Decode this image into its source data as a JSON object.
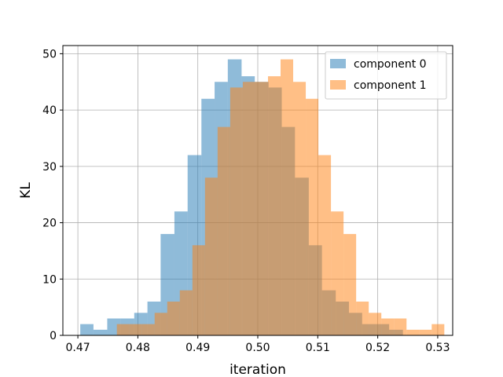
{
  "chart_data": {
    "type": "histogram",
    "title": "",
    "xlabel": "iteration",
    "ylabel": "KL",
    "xlim": [
      0.4675,
      0.5325
    ],
    "ylim": [
      0,
      51.45
    ],
    "xticks": [
      "0.47",
      "0.48",
      "0.49",
      "0.50",
      "0.51",
      "0.52",
      "0.53"
    ],
    "xtick_values": [
      0.47,
      0.48,
      0.49,
      0.5,
      0.51,
      0.52,
      0.53
    ],
    "yticks": [
      "0",
      "10",
      "20",
      "30",
      "40",
      "50"
    ],
    "ytick_values": [
      0,
      10,
      20,
      30,
      40,
      50
    ],
    "grid": true,
    "legend_position": "top-right",
    "series": [
      {
        "name": "component 0",
        "color": "#1f77b4",
        "alpha": 0.5,
        "bins": [
          {
            "x0": 0.4704,
            "x1": 0.4726,
            "count": 2
          },
          {
            "x0": 0.4726,
            "x1": 0.4749,
            "count": 1
          },
          {
            "x0": 0.4749,
            "x1": 0.4771,
            "count": 3
          },
          {
            "x0": 0.4771,
            "x1": 0.4794,
            "count": 3
          },
          {
            "x0": 0.4794,
            "x1": 0.4816,
            "count": 4
          },
          {
            "x0": 0.4816,
            "x1": 0.4838,
            "count": 6
          },
          {
            "x0": 0.4838,
            "x1": 0.4861,
            "count": 18
          },
          {
            "x0": 0.4861,
            "x1": 0.4883,
            "count": 22
          },
          {
            "x0": 0.4883,
            "x1": 0.4906,
            "count": 32
          },
          {
            "x0": 0.4906,
            "x1": 0.4928,
            "count": 42
          },
          {
            "x0": 0.4928,
            "x1": 0.495,
            "count": 45
          },
          {
            "x0": 0.495,
            "x1": 0.4973,
            "count": 49
          },
          {
            "x0": 0.4973,
            "x1": 0.4995,
            "count": 46
          },
          {
            "x0": 0.4995,
            "x1": 0.5018,
            "count": 45
          },
          {
            "x0": 0.5018,
            "x1": 0.504,
            "count": 44
          },
          {
            "x0": 0.504,
            "x1": 0.5062,
            "count": 37
          },
          {
            "x0": 0.5062,
            "x1": 0.5085,
            "count": 28
          },
          {
            "x0": 0.5085,
            "x1": 0.5107,
            "count": 16
          },
          {
            "x0": 0.5107,
            "x1": 0.513,
            "count": 8
          },
          {
            "x0": 0.513,
            "x1": 0.5152,
            "count": 6
          },
          {
            "x0": 0.5152,
            "x1": 0.5174,
            "count": 4
          },
          {
            "x0": 0.5174,
            "x1": 0.5197,
            "count": 2
          },
          {
            "x0": 0.5197,
            "x1": 0.5219,
            "count": 2
          },
          {
            "x0": 0.5219,
            "x1": 0.5242,
            "count": 1
          }
        ]
      },
      {
        "name": "component 1",
        "color": "#ff7f0e",
        "alpha": 0.5,
        "bins": [
          {
            "x0": 0.4765,
            "x1": 0.4786,
            "count": 2
          },
          {
            "x0": 0.4786,
            "x1": 0.4807,
            "count": 2
          },
          {
            "x0": 0.4807,
            "x1": 0.4828,
            "count": 2
          },
          {
            "x0": 0.4828,
            "x1": 0.4849,
            "count": 4
          },
          {
            "x0": 0.4849,
            "x1": 0.487,
            "count": 6
          },
          {
            "x0": 0.487,
            "x1": 0.4891,
            "count": 8
          },
          {
            "x0": 0.4891,
            "x1": 0.4912,
            "count": 16
          },
          {
            "x0": 0.4912,
            "x1": 0.4933,
            "count": 28
          },
          {
            "x0": 0.4933,
            "x1": 0.4954,
            "count": 37
          },
          {
            "x0": 0.4954,
            "x1": 0.4975,
            "count": 44
          },
          {
            "x0": 0.4975,
            "x1": 0.4996,
            "count": 45
          },
          {
            "x0": 0.4996,
            "x1": 0.5017,
            "count": 45
          },
          {
            "x0": 0.5017,
            "x1": 0.5038,
            "count": 46
          },
          {
            "x0": 0.5038,
            "x1": 0.5059,
            "count": 49
          },
          {
            "x0": 0.5059,
            "x1": 0.508,
            "count": 45
          },
          {
            "x0": 0.508,
            "x1": 0.5101,
            "count": 42
          },
          {
            "x0": 0.5101,
            "x1": 0.5122,
            "count": 32
          },
          {
            "x0": 0.5122,
            "x1": 0.5143,
            "count": 22
          },
          {
            "x0": 0.5143,
            "x1": 0.5164,
            "count": 18
          },
          {
            "x0": 0.5164,
            "x1": 0.5185,
            "count": 6
          },
          {
            "x0": 0.5185,
            "x1": 0.5206,
            "count": 4
          },
          {
            "x0": 0.5206,
            "x1": 0.5227,
            "count": 3
          },
          {
            "x0": 0.5227,
            "x1": 0.5248,
            "count": 3
          },
          {
            "x0": 0.5248,
            "x1": 0.5269,
            "count": 1
          },
          {
            "x0": 0.5269,
            "x1": 0.529,
            "count": 1
          },
          {
            "x0": 0.529,
            "x1": 0.5311,
            "count": 2
          }
        ]
      }
    ]
  }
}
